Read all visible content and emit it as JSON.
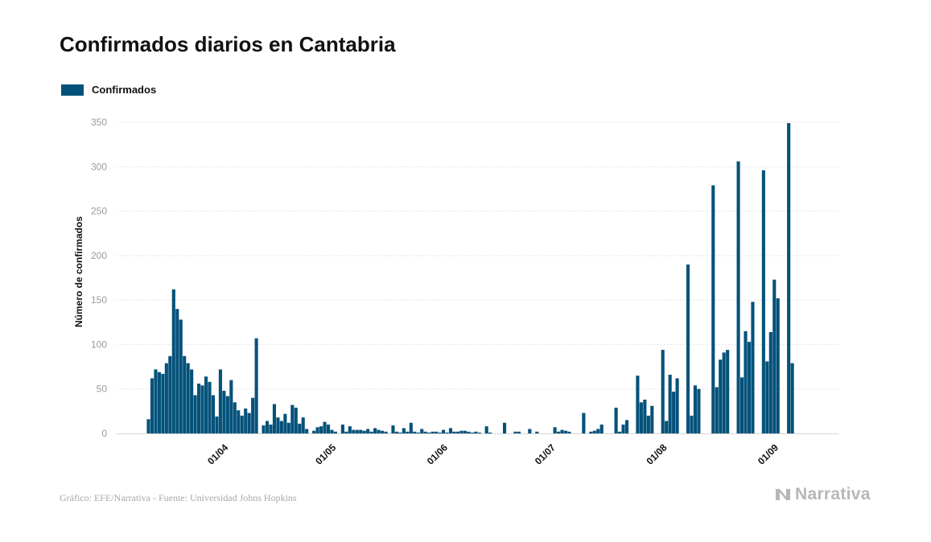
{
  "chart_data": {
    "type": "bar",
    "title": "Confirmados diarios en Cantabria",
    "ylabel": "Número de confirmados",
    "xlabel": "",
    "ylim": [
      0,
      350
    ],
    "yticks": [
      0,
      50,
      100,
      150,
      200,
      250,
      300,
      350
    ],
    "x_start": "2020-03-12",
    "x_ticks": [
      {
        "date": "2020-04-01",
        "label": "01/04"
      },
      {
        "date": "2020-05-01",
        "label": "01/05"
      },
      {
        "date": "2020-06-01",
        "label": "01/06"
      },
      {
        "date": "2020-07-01",
        "label": "01/07"
      },
      {
        "date": "2020-08-01",
        "label": "01/08"
      },
      {
        "date": "2020-09-01",
        "label": "01/09"
      }
    ],
    "grid": true,
    "series": [
      {
        "name": "Confirmados",
        "color": "#04527a",
        "values": [
          16,
          62,
          72,
          69,
          67,
          79,
          87,
          162,
          140,
          128,
          87,
          79,
          72,
          43,
          56,
          54,
          64,
          58,
          43,
          19,
          72,
          48,
          42,
          60,
          35,
          26,
          20,
          28,
          23,
          40,
          107,
          0,
          9,
          14,
          10,
          33,
          18,
          14,
          22,
          12,
          32,
          29,
          11,
          18,
          5,
          0,
          3,
          7,
          8,
          13,
          10,
          4,
          2,
          0,
          10,
          2,
          8,
          4,
          4,
          4,
          3,
          5,
          2,
          6,
          4,
          3,
          2,
          0,
          9,
          2,
          1,
          6,
          2,
          12,
          2,
          1,
          5,
          2,
          1,
          2,
          2,
          1,
          4,
          1,
          6,
          2,
          2,
          3,
          3,
          2,
          1,
          2,
          1,
          0,
          8,
          1,
          0,
          0,
          0,
          12,
          0,
          0,
          2,
          2,
          0,
          0,
          5,
          0,
          2,
          0,
          0,
          0,
          0,
          7,
          2,
          4,
          3,
          2,
          0,
          0,
          0,
          23,
          0,
          2,
          3,
          5,
          10,
          0,
          0,
          0,
          29,
          2,
          10,
          15,
          0,
          0,
          65,
          35,
          38,
          20,
          31,
          0,
          0,
          94,
          14,
          66,
          47,
          62,
          0,
          0,
          190,
          20,
          54,
          50,
          0,
          0,
          0,
          279,
          52,
          83,
          91,
          94,
          0,
          0,
          306,
          63,
          115,
          103,
          148,
          0,
          0,
          296,
          81,
          114,
          173,
          152,
          0,
          0,
          349,
          79
        ]
      }
    ]
  },
  "footer": {
    "source": "Gráfico: EFE/Narrativa - Fuente: Universidad Johns Hopkins",
    "brand": "Narrativa"
  }
}
